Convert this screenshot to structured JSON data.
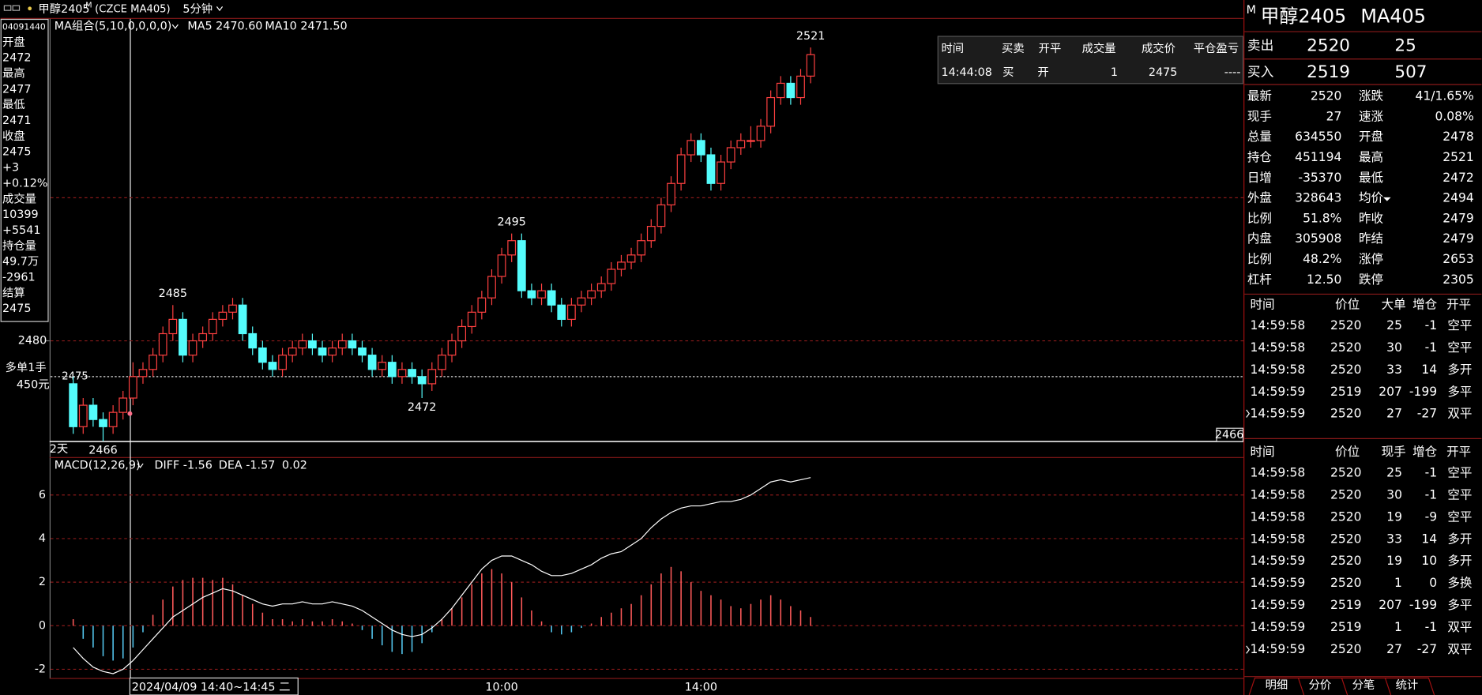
{
  "header": {
    "name": "甲醇2405",
    "flag": "M",
    "code": "(CZCE MA405)",
    "period": "5分钟"
  },
  "info": {
    "id": "04091440",
    "lines": [
      {
        "text": "开盘",
        "color": "#ffffff"
      },
      {
        "text": 2472,
        "color": "#ffffff"
      },
      {
        "text": "最高",
        "color": "#ffffff"
      },
      {
        "text": 2477,
        "color": "#ff4040"
      },
      {
        "text": "最低",
        "color": "#ffffff"
      },
      {
        "text": 2471,
        "color": "#00e600"
      },
      {
        "text": "收盘",
        "color": "#ffffff"
      },
      {
        "text": 2475,
        "color": "#ff4040"
      },
      {
        "text": "+3",
        "color": "#ff4040"
      },
      {
        "text": "+0.12%",
        "color": "#ff4040"
      },
      {
        "text": "成交量",
        "color": "#ffffff"
      },
      {
        "text": 10399,
        "color": "#e8e84a"
      },
      {
        "text": "+5541",
        "color": "#ff4040"
      },
      {
        "text": "持仓量",
        "color": "#ffffff"
      },
      {
        "text": "49.7万",
        "color": "#e8e84a"
      },
      {
        "text": -2961,
        "color": "#00e600"
      },
      {
        "text": "结算",
        "color": "#ffffff"
      },
      {
        "text": 2475,
        "color": "#e8e84a"
      }
    ]
  },
  "chart_data": [
    {
      "type": "candlestick",
      "legend": [
        "MA组合(5,10,0,0,0,0)",
        "MA5 2470.60",
        "MA10 2471.50"
      ],
      "legend_colors": [
        "#e8e84a",
        "#ffffff",
        "#e8e84a"
      ],
      "up_color": "#ff4040",
      "down_color": "#54fcfc",
      "ylim": [
        2466,
        2525
      ],
      "yticks": [
        2480
      ],
      "gridlines": [
        2480,
        2500
      ],
      "marked_highs": [
        2485,
        2495,
        2521
      ],
      "marked_lows": [
        2466,
        2472
      ],
      "position": {
        "label": "多单1手",
        "pnl": "450元",
        "price": 2475
      },
      "period_label": "2天",
      "ohlc": [
        [
          2474,
          2475,
          2467,
          2468
        ],
        [
          2468,
          2472,
          2467,
          2471
        ],
        [
          2471,
          2472,
          2468,
          2469
        ],
        [
          2469,
          2470,
          2466,
          2468
        ],
        [
          2468,
          2471,
          2467,
          2470
        ],
        [
          2470,
          2473,
          2469,
          2472
        ],
        [
          2472,
          2477,
          2471,
          2475
        ],
        [
          2475,
          2477,
          2474,
          2476
        ],
        [
          2476,
          2479,
          2475,
          2478
        ],
        [
          2478,
          2482,
          2477,
          2481
        ],
        [
          2481,
          2485,
          2480,
          2483
        ],
        [
          2483,
          2484,
          2477,
          2478
        ],
        [
          2478,
          2481,
          2477,
          2480
        ],
        [
          2480,
          2482,
          2479,
          2481
        ],
        [
          2481,
          2484,
          2480,
          2483
        ],
        [
          2483,
          2485,
          2482,
          2484
        ],
        [
          2484,
          2486,
          2483,
          2485
        ],
        [
          2485,
          2486,
          2480,
          2481
        ],
        [
          2481,
          2482,
          2478,
          2479
        ],
        [
          2479,
          2480,
          2476,
          2477
        ],
        [
          2477,
          2478,
          2475,
          2476
        ],
        [
          2476,
          2479,
          2475,
          2478
        ],
        [
          2478,
          2480,
          2477,
          2479
        ],
        [
          2479,
          2481,
          2478,
          2480
        ],
        [
          2480,
          2481,
          2478,
          2479
        ],
        [
          2479,
          2480,
          2477,
          2478
        ],
        [
          2478,
          2480,
          2477,
          2479
        ],
        [
          2479,
          2481,
          2478,
          2480
        ],
        [
          2480,
          2481,
          2478,
          2479
        ],
        [
          2479,
          2480,
          2477,
          2478
        ],
        [
          2478,
          2479,
          2475,
          2476
        ],
        [
          2476,
          2478,
          2475,
          2477
        ],
        [
          2477,
          2478,
          2474,
          2475
        ],
        [
          2475,
          2477,
          2474,
          2476
        ],
        [
          2476,
          2477,
          2474,
          2475
        ],
        [
          2475,
          2476,
          2472,
          2474
        ],
        [
          2474,
          2477,
          2473,
          2476
        ],
        [
          2476,
          2479,
          2475,
          2478
        ],
        [
          2478,
          2481,
          2477,
          2480
        ],
        [
          2480,
          2483,
          2479,
          2482
        ],
        [
          2482,
          2485,
          2481,
          2484
        ],
        [
          2484,
          2487,
          2483,
          2486
        ],
        [
          2486,
          2490,
          2485,
          2489
        ],
        [
          2489,
          2493,
          2488,
          2492
        ],
        [
          2492,
          2495,
          2491,
          2494
        ],
        [
          2494,
          2495,
          2486,
          2487
        ],
        [
          2487,
          2488,
          2485,
          2486
        ],
        [
          2486,
          2488,
          2485,
          2487
        ],
        [
          2487,
          2488,
          2484,
          2485
        ],
        [
          2485,
          2486,
          2482,
          2483
        ],
        [
          2483,
          2486,
          2482,
          2485
        ],
        [
          2485,
          2487,
          2484,
          2486
        ],
        [
          2486,
          2488,
          2485,
          2487
        ],
        [
          2487,
          2489,
          2486,
          2488
        ],
        [
          2488,
          2491,
          2487,
          2490
        ],
        [
          2490,
          2492,
          2489,
          2491
        ],
        [
          2491,
          2493,
          2490,
          2492
        ],
        [
          2492,
          2495,
          2491,
          2494
        ],
        [
          2494,
          2497,
          2493,
          2496
        ],
        [
          2496,
          2500,
          2495,
          2499
        ],
        [
          2499,
          2503,
          2498,
          2502
        ],
        [
          2502,
          2507,
          2501,
          2506
        ],
        [
          2506,
          2509,
          2505,
          2508
        ],
        [
          2508,
          2509,
          2505,
          2506
        ],
        [
          2506,
          2507,
          2501,
          2502
        ],
        [
          2502,
          2506,
          2501,
          2505
        ],
        [
          2505,
          2508,
          2504,
          2507
        ],
        [
          2507,
          2509,
          2506,
          2508
        ],
        [
          2508,
          2510,
          2507,
          2508
        ],
        [
          2508,
          2511,
          2507,
          2510
        ],
        [
          2510,
          2515,
          2509,
          2514
        ],
        [
          2514,
          2517,
          2513,
          2516
        ],
        [
          2516,
          2517,
          2513,
          2514
        ],
        [
          2514,
          2518,
          2513,
          2517
        ],
        [
          2517,
          2521,
          2516,
          2520
        ]
      ]
    },
    {
      "type": "macd",
      "legend": "MACD(12,26,9)",
      "diff_label": "DIFF -1.56",
      "dea_label": "DEA -1.57",
      "macd_label": "0.02",
      "ylim": [
        -2.4,
        7.7
      ],
      "yticks": [
        -2,
        0,
        2,
        4,
        6
      ],
      "diff_color": "#ffffff",
      "up_color": "#ff5a5a",
      "down_color": "#54c8f0",
      "cursor_label": "2024/04/09 14:40~14:45 二",
      "categories": [
        null,
        null,
        null,
        null,
        null,
        null,
        null,
        null,
        null,
        null,
        null,
        null,
        null,
        null,
        null,
        null,
        null,
        null,
        null,
        null,
        null,
        null,
        null,
        null,
        null,
        null,
        null,
        null,
        null,
        null,
        null,
        null,
        null,
        null,
        null,
        null,
        null,
        null,
        null,
        null,
        null,
        null,
        null,
        "10:00",
        null,
        null,
        null,
        null,
        null,
        null,
        null,
        null,
        null,
        null,
        null,
        null,
        null,
        null,
        null,
        null,
        null,
        null,
        null,
        "14:00",
        null,
        null,
        null,
        null,
        null,
        null,
        null,
        null,
        null,
        null,
        null
      ],
      "diff": [
        -1.0,
        -1.5,
        -1.9,
        -2.1,
        -2.2,
        -2.0,
        -1.6,
        -1.1,
        -0.6,
        -0.1,
        0.4,
        0.7,
        1.0,
        1.3,
        1.5,
        1.7,
        1.6,
        1.4,
        1.2,
        1.0,
        0.9,
        1.0,
        1.0,
        1.1,
        1.0,
        1.0,
        1.1,
        1.0,
        0.9,
        0.7,
        0.4,
        0.1,
        -0.2,
        -0.4,
        -0.5,
        -0.4,
        -0.1,
        0.3,
        0.8,
        1.4,
        2.0,
        2.6,
        3.0,
        3.2,
        3.2,
        3.0,
        2.8,
        2.5,
        2.3,
        2.3,
        2.4,
        2.6,
        2.8,
        3.1,
        3.3,
        3.4,
        3.7,
        4.0,
        4.5,
        4.9,
        5.2,
        5.4,
        5.5,
        5.5,
        5.6,
        5.7,
        5.7,
        5.8,
        6.0,
        6.3,
        6.6,
        6.7,
        6.6,
        6.7,
        6.8
      ],
      "hist": [
        0.3,
        -0.6,
        -1.0,
        -1.4,
        -1.6,
        -1.5,
        -1.0,
        -0.3,
        0.5,
        1.2,
        1.8,
        2.1,
        2.2,
        2.2,
        2.1,
        2.2,
        1.9,
        1.4,
        1.0,
        0.6,
        0.3,
        0.3,
        0.2,
        0.3,
        0.2,
        0.2,
        0.3,
        0.2,
        0.1,
        -0.2,
        -0.6,
        -0.9,
        -1.2,
        -1.3,
        -1.2,
        -0.8,
        -0.3,
        0.3,
        0.8,
        1.3,
        1.9,
        2.4,
        2.6,
        2.4,
        2.0,
        1.3,
        0.7,
        0.2,
        -0.3,
        -0.4,
        -0.3,
        -0.1,
        0.1,
        0.4,
        0.6,
        0.8,
        1.0,
        1.4,
        1.9,
        2.4,
        2.7,
        2.5,
        2.0,
        1.6,
        1.4,
        1.2,
        0.9,
        0.8,
        1.0,
        1.2,
        1.4,
        1.2,
        0.9,
        0.7,
        0.4
      ]
    }
  ],
  "trade_popup": {
    "headers": [
      "时间",
      "买卖",
      "开平",
      "成交量",
      "成交价",
      "平仓盈亏"
    ],
    "row": [
      "14:44:08",
      "买",
      "开",
      1,
      2475,
      "----"
    ]
  },
  "quote": {
    "flag": "M",
    "title": "甲醇2405",
    "code": "MA405",
    "ask": {
      "label": "卖出",
      "price": 2520,
      "volume": 25
    },
    "bid": {
      "label": "买入",
      "price": 2519,
      "volume": 507
    },
    "stats": [
      [
        {
          "label": "最新",
          "value": 2520,
          "color": "#ff4040"
        },
        {
          "label": "涨跌",
          "value": "41/1.65%",
          "color": "#ff4040"
        }
      ],
      [
        {
          "label": "现手",
          "value": 27,
          "color": "#e8e84a"
        },
        {
          "label": "速涨",
          "value": "0.08%",
          "color": "#ff4040"
        }
      ],
      [
        {
          "label": "总量",
          "value": 634550,
          "color": "#e8e84a"
        },
        {
          "label": "开盘",
          "value": 2478,
          "color": "#00e600"
        }
      ],
      [
        {
          "label": "持仓",
          "value": 451194,
          "color": "#e8e84a"
        },
        {
          "label": "最高",
          "value": 2521,
          "color": "#ff4040"
        }
      ],
      [
        {
          "label": "日增",
          "value": -35370,
          "color": "#e8e84a"
        },
        {
          "label": "最低",
          "value": 2472,
          "color": "#00e600"
        }
      ],
      [
        {
          "label": "外盘",
          "value": 328643,
          "color": "#e8e84a"
        },
        {
          "label": "均价",
          "value": 2494,
          "color": "#ff4040"
        }
      ],
      [
        {
          "label": "比例",
          "value": "51.8%",
          "color": "#e8e84a"
        },
        {
          "label": "昨收",
          "value": 2479,
          "color": "#ffffff"
        }
      ],
      [
        {
          "label": "内盘",
          "value": 305908,
          "color": "#e8e84a"
        },
        {
          "label": "昨结",
          "value": 2479,
          "color": "#ffffff"
        }
      ],
      [
        {
          "label": "比例",
          "value": "48.2%",
          "color": "#e8e84a"
        },
        {
          "label": "涨停",
          "value": 2653,
          "color": "#ff4040"
        }
      ],
      [
        {
          "label": "杠杆",
          "value": "12.50",
          "color": "#e8e84a"
        },
        {
          "label": "跌停",
          "value": 2305,
          "color": "#00e600"
        }
      ]
    ]
  },
  "big_trades": {
    "headers": [
      "时间",
      "价位",
      "大单",
      "增仓",
      "开平"
    ],
    "rows": [
      [
        "14:59:58",
        2520,
        25,
        -1,
        "空平"
      ],
      [
        "14:59:58",
        2520,
        30,
        -1,
        "空平"
      ],
      [
        "14:59:58",
        2520,
        33,
        14,
        "多开"
      ],
      [
        "14:59:59",
        2519,
        207,
        -199,
        "多平"
      ],
      [
        "14:59:59",
        2520,
        27,
        -27,
        "双平"
      ]
    ],
    "size_colors": [
      "#ff4040",
      "#ff4040",
      "#ff4040",
      "#00e600",
      "#ff4040"
    ]
  },
  "all_trades": {
    "headers": [
      "时间",
      "价位",
      "现手",
      "增仓",
      "开平"
    ],
    "rows": [
      [
        "14:59:58",
        2520,
        25,
        -1,
        "空平"
      ],
      [
        "14:59:58",
        2520,
        30,
        -1,
        "空平"
      ],
      [
        "14:59:58",
        2520,
        19,
        -9,
        "空平"
      ],
      [
        "14:59:58",
        2520,
        33,
        14,
        "多开"
      ],
      [
        "14:59:59",
        2520,
        19,
        10,
        "多开"
      ],
      [
        "14:59:59",
        2520,
        1,
        0,
        "多换"
      ],
      [
        "14:59:59",
        2519,
        207,
        -199,
        "多平"
      ],
      [
        "14:59:59",
        2519,
        1,
        -1,
        "双平"
      ],
      [
        "14:59:59",
        2520,
        27,
        -27,
        "双平"
      ]
    ],
    "size_colors": [
      "#ff4040",
      "#ff4040",
      "#ff4040",
      "#ff4040",
      "#ff4040",
      "#ff4040",
      "#00e600",
      "#00e600",
      "#ff4040"
    ]
  },
  "tabs": [
    "明细",
    "分价",
    "分笔",
    "统计"
  ]
}
